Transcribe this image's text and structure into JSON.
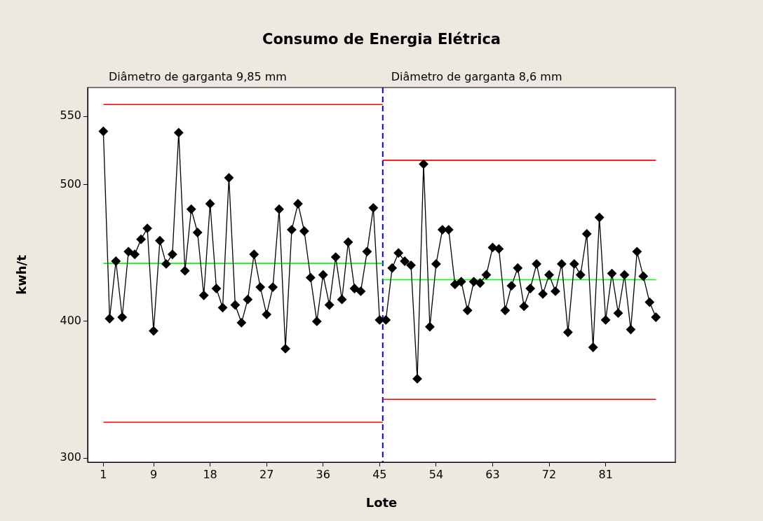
{
  "chart_data": {
    "type": "line",
    "title": "Consumo de Energia Elétrica",
    "xlabel": "Lote",
    "ylabel": "kwh/t",
    "annotations": [
      "Diâmetro de garganta 9,85 mm",
      "Diâmetro de garganta 8,6 mm"
    ],
    "x": [
      1,
      2,
      3,
      4,
      5,
      6,
      7,
      8,
      9,
      10,
      11,
      12,
      13,
      14,
      15,
      16,
      17,
      18,
      19,
      20,
      21,
      22,
      23,
      24,
      25,
      26,
      27,
      28,
      29,
      30,
      31,
      32,
      33,
      34,
      35,
      36,
      37,
      38,
      39,
      40,
      41,
      42,
      43,
      44,
      45,
      46,
      47,
      48,
      49,
      50,
      51,
      52,
      53,
      54,
      55,
      56,
      57,
      58,
      59,
      60,
      61,
      62,
      63,
      64,
      65,
      66,
      67,
      68,
      69,
      70,
      71,
      72,
      73,
      74,
      75,
      76,
      77,
      78,
      79,
      80,
      81,
      82,
      83,
      84,
      85,
      86,
      87,
      88,
      89
    ],
    "series": [
      {
        "color": "#000000",
        "marker": "diamond",
        "values": [
          539,
          402,
          444,
          403,
          451,
          449,
          460,
          468,
          393,
          459,
          442,
          449,
          538,
          437,
          482,
          465,
          419,
          486,
          424,
          410,
          505,
          412,
          399,
          416,
          449,
          425,
          405,
          425,
          482,
          380,
          467,
          486,
          466,
          432,
          400,
          434,
          412,
          447,
          416,
          458,
          424,
          422,
          451,
          483,
          401,
          401,
          439,
          450,
          444,
          441,
          358,
          515,
          396,
          442,
          467,
          467,
          427,
          429,
          408,
          429,
          428,
          434,
          454,
          453,
          408,
          426,
          439,
          411,
          424,
          442,
          420,
          434,
          422,
          442,
          392,
          442,
          434,
          464,
          381,
          476,
          401,
          435,
          406,
          434,
          394,
          451,
          433,
          414,
          403
        ]
      },
      {
        "type": "line",
        "color": "#ff0000",
        "marker": "none",
        "x": [
          1,
          45.5
        ],
        "values": [
          558.6,
          558.6
        ]
      },
      {
        "type": "line",
        "color": "#00ff00",
        "marker": "none",
        "x": [
          1,
          45.5
        ],
        "values": [
          442.4,
          442.4
        ]
      },
      {
        "type": "line",
        "color": "#ff0000",
        "marker": "none",
        "x": [
          1,
          45.5
        ],
        "values": [
          326.2,
          326.2
        ]
      },
      {
        "type": "line",
        "color": "#ff0000",
        "marker": "none",
        "x": [
          45.5,
          89
        ],
        "values": [
          517.8,
          517.8
        ]
      },
      {
        "type": "line",
        "color": "#00ff00",
        "marker": "none",
        "x": [
          45.5,
          89
        ],
        "values": [
          430.4,
          430.4
        ]
      },
      {
        "type": "line",
        "color": "#ff0000",
        "marker": "none",
        "x": [
          45.5,
          89
        ],
        "values": [
          343,
          343
        ]
      }
    ],
    "ref_lines": [
      {
        "axis": "x",
        "value": 45.5,
        "color": "#0000ff",
        "line_style": "dashed"
      }
    ],
    "xlim": [
      -1.5,
      92.1
    ],
    "xticks": [
      1,
      9,
      18,
      27,
      36,
      45,
      54,
      63,
      72,
      81
    ],
    "ylim": [
      297,
      571
    ],
    "yticks": [
      300,
      400,
      500,
      550
    ],
    "legend": false
  }
}
